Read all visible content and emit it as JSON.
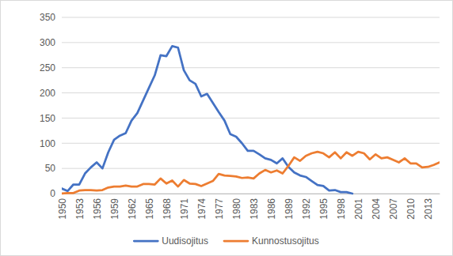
{
  "chart_data": {
    "type": "line",
    "x": [
      1950,
      1951,
      1952,
      1953,
      1954,
      1955,
      1956,
      1957,
      1958,
      1959,
      1960,
      1961,
      1962,
      1963,
      1964,
      1965,
      1966,
      1967,
      1968,
      1969,
      1970,
      1971,
      1972,
      1973,
      1974,
      1975,
      1976,
      1977,
      1978,
      1979,
      1980,
      1981,
      1982,
      1983,
      1984,
      1985,
      1986,
      1987,
      1988,
      1989,
      1990,
      1991,
      1992,
      1993,
      1994,
      1995,
      1996,
      1997,
      1998,
      1999,
      2000,
      2001,
      2002,
      2003,
      2004,
      2005,
      2006,
      2007,
      2008,
      2009,
      2010,
      2011,
      2012,
      2013,
      2014,
      2015
    ],
    "xlim": [
      1950,
      2015
    ],
    "xticks": [
      1950,
      1953,
      1956,
      1959,
      1962,
      1965,
      1968,
      1971,
      1974,
      1977,
      1980,
      1983,
      1986,
      1989,
      1992,
      1995,
      1998,
      2001,
      2004,
      2007,
      2010,
      2013
    ],
    "ylim": [
      0,
      350
    ],
    "yticks": [
      0,
      50,
      100,
      150,
      200,
      250,
      300,
      350
    ],
    "grid": true,
    "legend": "bottom",
    "series": [
      {
        "name": "Uudisojitus",
        "color": "#4472c4",
        "values": [
          10,
          5,
          18,
          18,
          40,
          52,
          62,
          50,
          82,
          107,
          115,
          120,
          145,
          160,
          185,
          210,
          235,
          275,
          273,
          293,
          290,
          245,
          225,
          218,
          193,
          198,
          180,
          162,
          145,
          118,
          113,
          100,
          85,
          85,
          78,
          70,
          67,
          60,
          70,
          53,
          42,
          36,
          33,
          25,
          17,
          15,
          6,
          7,
          3,
          3,
          0,
          null,
          null,
          null,
          null,
          null,
          null,
          null,
          null,
          null,
          null,
          null,
          null,
          null,
          null,
          null
        ]
      },
      {
        "name": "Kunnostusojitus",
        "color": "#ed7d31",
        "values": [
          0,
          1,
          1,
          6,
          7,
          7,
          6,
          7,
          12,
          14,
          14,
          16,
          14,
          14,
          19,
          19,
          18,
          30,
          20,
          26,
          14,
          27,
          20,
          19,
          15,
          20,
          25,
          39,
          36,
          35,
          34,
          31,
          32,
          30,
          40,
          47,
          42,
          46,
          40,
          55,
          72,
          65,
          75,
          80,
          83,
          80,
          72,
          82,
          70,
          82,
          75,
          83,
          80,
          68,
          78,
          70,
          72,
          67,
          62,
          70,
          60,
          60,
          52,
          53,
          57,
          62
        ]
      }
    ]
  }
}
